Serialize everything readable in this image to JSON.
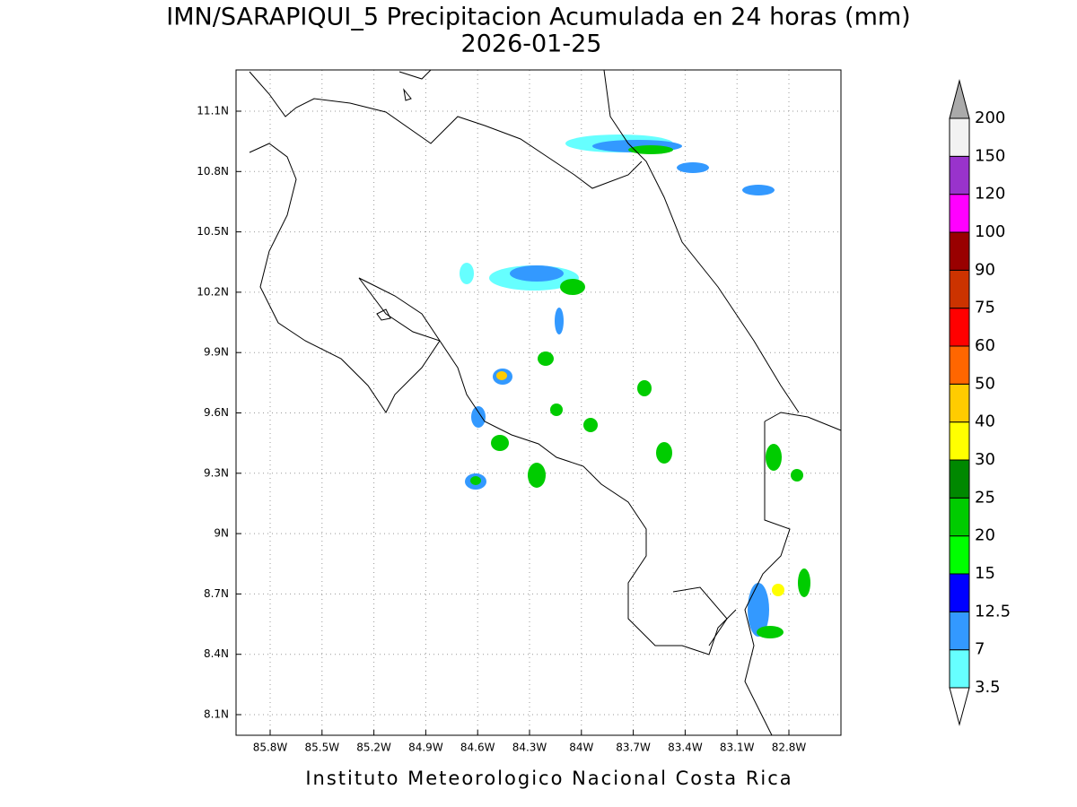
{
  "title": "IMN/SARAPIQUI_5 Precipitacion Acumulada en 24 horas (mm)",
  "subtitle": "2026-01-25",
  "map": {
    "xticks": [
      "85.8W",
      "85.5W",
      "85.2W",
      "84.9W",
      "84.6W",
      "84.3W",
      "84W",
      "83.7W",
      "83.4W",
      "83.1W",
      "82.8W"
    ],
    "yticks": [
      "11.1N",
      "10.8N",
      "10.5N",
      "10.2N",
      "9.9N",
      "9.6N",
      "9.3N",
      "9N",
      "8.7N",
      "8.4N",
      "8.1N"
    ]
  },
  "colorbar": {
    "levels": [
      3.5,
      7,
      12.5,
      15,
      20,
      25,
      30,
      40,
      50,
      60,
      75,
      90,
      100,
      120,
      150,
      200
    ],
    "colors": [
      "#66ffff",
      "#3399ff",
      "#0000ff",
      "#00ff00",
      "#00cc00",
      "#008800",
      "#ffff00",
      "#ffcc00",
      "#ff6600",
      "#ff0000",
      "#cc3300",
      "#990000",
      "#ff00ff",
      "#9933cc",
      "#f2f2f2"
    ],
    "under_color": "#ffffff",
    "over_color": "#aaaaaa"
  },
  "footer": "Instituto Meteorologico Nacional Costa Rica"
}
